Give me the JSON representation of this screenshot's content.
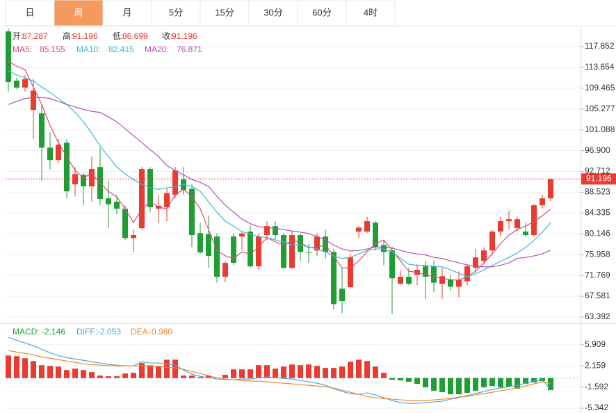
{
  "tabs": [
    "日",
    "周",
    "月",
    "5分",
    "15分",
    "30分",
    "60分",
    "4时"
  ],
  "active_tab": 1,
  "chart_data": [
    {
      "type": "candlestick",
      "up_color": "#eb3a2f",
      "down_color": "#1f9e34",
      "ylim": [
        62.13,
        121.91
      ],
      "yticks": [
        117.852,
        113.654,
        109.465,
        105.277,
        101.088,
        {
          "value": 96.9,
          "label": "96.900"
        },
        92.712,
        88.523,
        84.335,
        80.146,
        75.958,
        71.769,
        67.581,
        63.392
      ],
      "grid": true,
      "ohlc": [
        {
          "name": "开:",
          "values": [
            120.9,
            111.0,
            109.6,
            105.1,
            104.4,
            97.5,
            95.0,
            98.5,
            90.1,
            92.0,
            89.7,
            93.6,
            87.3,
            86.6,
            85.2,
            79.3,
            81.3,
            93.2,
            85.2,
            85.5,
            88.0,
            91.1,
            89.2,
            80.3,
            80.1,
            79.6,
            71.5,
            79.6,
            79.6,
            80.6,
            73.6,
            79.9,
            81.7,
            79.9,
            73.3,
            79.9,
            76.5,
            76.8,
            79.6,
            76.5,
            69.1,
            69.4,
            80.6,
            80.6,
            82.4,
            77.9,
            76.8,
            70.1,
            71.5,
            71.9,
            73.6,
            73.6,
            70.1,
            70.9,
            69.5,
            70.6,
            73.3,
            74.7,
            76.8,
            80.6,
            82.7,
            81.3,
            80.6,
            79.9,
            85.9,
            87.287
          ]
        },
        {
          "name": "高:",
          "values": [
            121.5,
            111.6,
            112.1,
            111.4,
            106.2,
            100.6,
            99.2,
            99.2,
            93.6,
            92.5,
            95.7,
            97.5,
            90.8,
            88.0,
            85.9,
            81.0,
            93.6,
            93.6,
            88.0,
            89.4,
            93.6,
            93.6,
            90.1,
            82.4,
            83.8,
            80.3,
            74.7,
            80.3,
            80.6,
            81.7,
            80.3,
            82.7,
            82.7,
            80.3,
            80.6,
            80.3,
            78.2,
            80.3,
            81.0,
            77.1,
            73.3,
            76.1,
            81.7,
            83.6,
            82.7,
            78.9,
            77.5,
            72.9,
            73.3,
            74.0,
            74.7,
            74.7,
            73.3,
            71.9,
            72.6,
            74.0,
            77.1,
            77.4,
            81.0,
            83.6,
            84.8,
            83.6,
            82.4,
            86.2,
            88.0,
            91.196
          ]
        },
        {
          "name": "低:",
          "values": [
            108.8,
            109.3,
            108.8,
            99.2,
            90.8,
            93.1,
            94.3,
            87.3,
            87.7,
            85.9,
            86.6,
            85.9,
            81.3,
            84.1,
            78.9,
            76.4,
            81.0,
            84.5,
            82.4,
            82.7,
            87.3,
            88.0,
            77.5,
            76.1,
            73.3,
            70.3,
            70.4,
            73.8,
            76.8,
            73.3,
            72.9,
            78.9,
            78.9,
            73.1,
            73.1,
            74.7,
            74.3,
            75.7,
            75.1,
            64.9,
            64.2,
            69.1,
            79.3,
            80.3,
            76.8,
            73.8,
            63.9,
            69.8,
            69.8,
            69.8,
            67.0,
            68.4,
            67.0,
            68.7,
            67.3,
            69.8,
            72.4,
            74.0,
            76.1,
            79.6,
            81.0,
            80.7,
            79.6,
            79.6,
            85.2,
            86.699
          ]
        },
        {
          "name": "收:",
          "values": [
            110.7,
            109.6,
            111.3,
            109.0,
            97.5,
            95.0,
            98.1,
            88.7,
            92.2,
            89.7,
            93.2,
            87.2,
            86.1,
            85.2,
            79.3,
            79.9,
            93.2,
            85.5,
            85.8,
            88.3,
            92.9,
            89.0,
            79.9,
            76.4,
            75.7,
            71.5,
            74.3,
            74.3,
            80.2,
            73.6,
            79.6,
            81.7,
            79.9,
            73.3,
            79.9,
            76.5,
            76.4,
            79.6,
            76.5,
            66.0,
            66.6,
            75.4,
            81.4,
            82.7,
            77.5,
            76.5,
            71.2,
            71.5,
            70.1,
            72.9,
            71.5,
            70.3,
            71.6,
            69.5,
            70.9,
            73.6,
            75.4,
            76.8,
            80.6,
            82.7,
            83.1,
            83.1,
            79.9,
            85.9,
            87.3,
            91.196
          ]
        }
      ],
      "series": [
        {
          "name": "MA5:",
          "color": "#d94b74",
          "values": [
            114.9,
            113.9,
            113.2,
            109.7,
            106.2,
            102.0,
            98.5,
            95.7,
            92.9,
            91.5,
            92.2,
            90.5,
            88.7,
            87.6,
            85.2,
            82.4,
            85.2,
            86.6,
            85.5,
            85.2,
            88.0,
            89.1,
            87.7,
            85.2,
            81.0,
            76.8,
            75.7,
            75.2,
            76.5,
            76.1,
            77.5,
            79.4,
            78.5,
            77.9,
            78.8,
            78.5,
            77.3,
            77.5,
            77.9,
            75.7,
            73.3,
            73.3,
            74.7,
            76.5,
            78.2,
            78.9,
            76.8,
            74.7,
            72.6,
            72.4,
            71.9,
            71.5,
            71.2,
            70.9,
            70.8,
            71.5,
            72.6,
            74.3,
            76.1,
            78.2,
            79.9,
            81.0,
            81.7,
            82.6,
            83.8,
            85.155
          ]
        },
        {
          "name": "MA10:",
          "color": "#3db8d6",
          "values": [
            113.0,
            112.1,
            111.6,
            110.9,
            109.7,
            108.6,
            107.4,
            106.2,
            104.6,
            102.7,
            100.4,
            97.8,
            95.7,
            93.6,
            92.2,
            91.1,
            90.1,
            89.4,
            89.1,
            89.4,
            89.7,
            90.1,
            89.7,
            88.7,
            86.6,
            84.5,
            82.7,
            81.7,
            80.6,
            80.1,
            79.6,
            79.4,
            78.9,
            78.5,
            77.9,
            77.9,
            77.5,
            77.1,
            76.5,
            75.7,
            75.2,
            75.4,
            76.1,
            76.8,
            77.1,
            77.1,
            76.5,
            75.2,
            74.0,
            73.8,
            73.8,
            73.6,
            73.5,
            72.9,
            72.2,
            71.5,
            72.1,
            72.9,
            73.8,
            74.6,
            75.4,
            76.3,
            77.4,
            78.8,
            80.5,
            82.415
          ]
        },
        {
          "name": "MA20:",
          "color": "#b150b5",
          "values": [
            106.2,
            106.8,
            107.4,
            107.6,
            107.6,
            107.4,
            106.8,
            106.2,
            105.7,
            105.2,
            104.8,
            104.6,
            103.7,
            102.7,
            101.3,
            99.9,
            98.5,
            97.1,
            95.7,
            93.9,
            92.9,
            92.0,
            91.1,
            90.5,
            89.7,
            87.7,
            85.9,
            84.5,
            83.1,
            82.2,
            81.6,
            81.4,
            81.3,
            81.0,
            80.7,
            80.5,
            80.2,
            79.6,
            78.9,
            77.9,
            77.1,
            76.7,
            76.8,
            77.1,
            77.5,
            77.5,
            77.3,
            76.8,
            76.4,
            76.1,
            75.9,
            75.4,
            75.2,
            74.7,
            74.3,
            73.9,
            73.6,
            73.5,
            73.5,
            73.8,
            74.3,
            75.2,
            75.4,
            75.7,
            76.1,
            76.871
          ]
        }
      ]
    },
    {
      "type": "macd",
      "up_color": "#eb3a2f",
      "down_color": "#1f9e34",
      "ylim": [
        -6.2,
        9.35
      ],
      "yticks": [
        5.909,
        2.159,
        -1.592,
        -5.342
      ],
      "series": [
        {
          "name": "MACD:",
          "style": "bar",
          "values": [
            4.01,
            3.89,
            3.52,
            3.03,
            2.29,
            2.16,
            2.04,
            1.43,
            1.67,
            1.43,
            1.06,
            0.44,
            0.32,
            0.32,
            0.81,
            0.93,
            2.66,
            2.29,
            2.16,
            3.27,
            3.27,
            0.44,
            0.44,
            0.2,
            0.44,
            0.1,
            0.57,
            1.55,
            1.55,
            1.55,
            2.29,
            2.29,
            1.67,
            2.04,
            2.41,
            2.29,
            2.41,
            2.16,
            1.8,
            1.8,
            2.04,
            2.9,
            3.27,
            3.03,
            2.04,
            0.93,
            -0.3,
            -0.42,
            -0.66,
            -1.03,
            -1.65,
            -2.26,
            -2.51,
            -2.88,
            -2.88,
            -2.63,
            -2.26,
            -1.65,
            -1.41,
            -1.65,
            -1.53,
            -1.89,
            -1.03,
            -0.79,
            -0.54,
            -2.146
          ]
        },
        {
          "name": "DIFF:",
          "style": "line",
          "color": "#4da6e0",
          "values": [
            7.21,
            6.72,
            6.22,
            5.73,
            5.12,
            4.5,
            3.99,
            3.64,
            3.39,
            3.15,
            2.9,
            2.66,
            2.41,
            2.29,
            2.16,
            2.16,
            2.9,
            2.66,
            2.66,
            2.53,
            2.29,
            1.43,
            0.69,
            0.32,
            0.07,
            -0.17,
            -0.3,
            -0.3,
            -0.17,
            -0.17,
            0.07,
            0.2,
            0.07,
            -0.05,
            -0.17,
            -0.42,
            -0.66,
            -0.91,
            -1.28,
            -1.89,
            -2.38,
            -2.76,
            -2.88,
            -2.63,
            -3.0,
            -3.49,
            -3.99,
            -4.35,
            -4.48,
            -4.48,
            -4.35,
            -4.23,
            -4.11,
            -3.74,
            -3.49,
            -3.12,
            -2.76,
            -2.38,
            -2.02,
            -1.77,
            -1.53,
            -1.28,
            -0.91,
            -0.54,
            -0.3,
            -2.053
          ]
        },
        {
          "name": "DEA:",
          "style": "line",
          "color": "#f08a2c",
          "values": [
            4.87,
            4.62,
            4.38,
            4.13,
            3.76,
            3.52,
            3.27,
            3.03,
            2.78,
            2.53,
            2.41,
            2.29,
            2.16,
            2.16,
            2.16,
            2.16,
            2.16,
            2.16,
            2.04,
            1.92,
            1.8,
            1.55,
            1.18,
            0.81,
            0.44,
            0.07,
            -0.17,
            -0.3,
            -0.42,
            -0.54,
            -0.54,
            -0.66,
            -0.79,
            -0.91,
            -1.03,
            -1.16,
            -1.28,
            -1.4,
            -1.53,
            -1.77,
            -2.14,
            -2.51,
            -2.88,
            -3.25,
            -3.49,
            -3.62,
            -3.74,
            -3.86,
            -3.99,
            -3.99,
            -3.99,
            -3.86,
            -3.74,
            -3.62,
            -3.37,
            -3.25,
            -3.0,
            -2.76,
            -2.51,
            -2.26,
            -2.02,
            -1.77,
            -1.4,
            -1.03,
            -0.66,
            -0.98
          ],
          "value_labels": [
            null,
            null,
            null,
            null,
            null,
            null,
            null,
            null,
            null,
            null,
            null,
            null,
            null,
            null,
            null,
            null,
            null,
            null,
            null,
            null,
            null,
            null,
            null,
            null,
            null,
            null,
            null,
            null,
            null,
            null,
            null,
            null,
            null,
            null,
            null,
            null,
            null,
            null,
            null,
            null,
            null,
            null,
            null,
            null,
            null,
            null,
            null,
            null,
            null,
            null,
            null,
            null,
            null,
            null,
            null,
            null,
            null,
            null,
            null,
            null,
            null,
            null,
            null,
            null,
            null,
            "-0.980"
          ]
        }
      ]
    }
  ]
}
